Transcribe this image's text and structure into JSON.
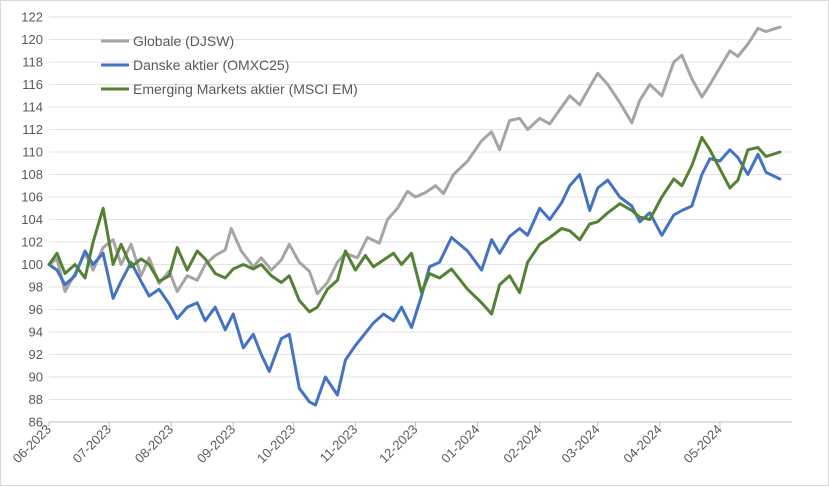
{
  "chart_data": {
    "type": "line",
    "title": "",
    "xlabel": "",
    "ylabel": "",
    "ylim": [
      86,
      122
    ],
    "y_ticks": [
      86,
      88,
      90,
      92,
      94,
      96,
      98,
      100,
      102,
      104,
      106,
      108,
      110,
      112,
      114,
      116,
      118,
      120,
      122
    ],
    "x_range": [
      "2023-06-01",
      "2024-06-06"
    ],
    "x_ticks": [
      {
        "date": "2023-06-01",
        "label": "06-2023"
      },
      {
        "date": "2023-07-01",
        "label": "07-2023"
      },
      {
        "date": "2023-08-01",
        "label": "08-2023"
      },
      {
        "date": "2023-09-01",
        "label": "09-2023"
      },
      {
        "date": "2023-10-01",
        "label": "10-2023"
      },
      {
        "date": "2023-11-01",
        "label": "11-2023"
      },
      {
        "date": "2023-12-01",
        "label": "12-2023"
      },
      {
        "date": "2024-01-01",
        "label": "01-2024"
      },
      {
        "date": "2024-02-01",
        "label": "02-2024"
      },
      {
        "date": "2024-03-01",
        "label": "03-2024"
      },
      {
        "date": "2024-04-01",
        "label": "04-2024"
      },
      {
        "date": "2024-05-01",
        "label": "05-2024"
      }
    ],
    "grid": "horizontal",
    "legend_position": "top-left",
    "series": [
      {
        "name": "Globale (DJSW)",
        "color": "#a5a5a5",
        "points": [
          [
            "2023-06-01",
            100.0
          ],
          [
            "2023-06-05",
            100.5
          ],
          [
            "2023-06-09",
            97.6
          ],
          [
            "2023-06-14",
            99.2
          ],
          [
            "2023-06-19",
            101.0
          ],
          [
            "2023-06-23",
            99.5
          ],
          [
            "2023-06-28",
            101.5
          ],
          [
            "2023-07-03",
            102.2
          ],
          [
            "2023-07-07",
            100.0
          ],
          [
            "2023-07-12",
            101.8
          ],
          [
            "2023-07-17",
            99.0
          ],
          [
            "2023-07-21",
            100.6
          ],
          [
            "2023-07-26",
            98.3
          ],
          [
            "2023-07-31",
            99.4
          ],
          [
            "2023-08-04",
            97.6
          ],
          [
            "2023-08-09",
            99.0
          ],
          [
            "2023-08-14",
            98.6
          ],
          [
            "2023-08-18",
            100.0
          ],
          [
            "2023-08-23",
            100.8
          ],
          [
            "2023-08-28",
            101.3
          ],
          [
            "2023-08-31",
            103.2
          ],
          [
            "2023-09-05",
            101.2
          ],
          [
            "2023-09-11",
            99.8
          ],
          [
            "2023-09-15",
            100.6
          ],
          [
            "2023-09-20",
            99.5
          ],
          [
            "2023-09-25",
            100.4
          ],
          [
            "2023-09-29",
            101.8
          ],
          [
            "2023-10-04",
            100.2
          ],
          [
            "2023-10-09",
            99.4
          ],
          [
            "2023-10-13",
            97.4
          ],
          [
            "2023-10-18",
            98.4
          ],
          [
            "2023-10-23",
            100.2
          ],
          [
            "2023-10-27",
            101.0
          ],
          [
            "2023-11-02",
            100.6
          ],
          [
            "2023-11-07",
            102.4
          ],
          [
            "2023-11-13",
            101.9
          ],
          [
            "2023-11-17",
            104.0
          ],
          [
            "2023-11-22",
            105.0
          ],
          [
            "2023-11-27",
            106.5
          ],
          [
            "2023-12-01",
            106.0
          ],
          [
            "2023-12-06",
            106.4
          ],
          [
            "2023-12-11",
            107.0
          ],
          [
            "2023-12-15",
            106.3
          ],
          [
            "2023-12-20",
            108.0
          ],
          [
            "2023-12-27",
            109.2
          ],
          [
            "2024-01-03",
            111.0
          ],
          [
            "2024-01-08",
            111.8
          ],
          [
            "2024-01-12",
            110.2
          ],
          [
            "2024-01-17",
            112.8
          ],
          [
            "2024-01-22",
            113.0
          ],
          [
            "2024-01-26",
            112.0
          ],
          [
            "2024-02-01",
            113.0
          ],
          [
            "2024-02-06",
            112.5
          ],
          [
            "2024-02-12",
            114.0
          ],
          [
            "2024-02-16",
            115.0
          ],
          [
            "2024-02-21",
            114.2
          ],
          [
            "2024-02-26",
            115.8
          ],
          [
            "2024-03-01",
            117.0
          ],
          [
            "2024-03-06",
            116.0
          ],
          [
            "2024-03-12",
            114.4
          ],
          [
            "2024-03-18",
            112.6
          ],
          [
            "2024-03-22",
            114.6
          ],
          [
            "2024-03-27",
            116.0
          ],
          [
            "2024-04-02",
            115.0
          ],
          [
            "2024-04-08",
            118.0
          ],
          [
            "2024-04-12",
            118.6
          ],
          [
            "2024-04-17",
            116.5
          ],
          [
            "2024-04-22",
            114.9
          ],
          [
            "2024-04-26",
            116.0
          ],
          [
            "2024-05-01",
            117.5
          ],
          [
            "2024-05-06",
            119.0
          ],
          [
            "2024-05-10",
            118.5
          ],
          [
            "2024-05-15",
            119.6
          ],
          [
            "2024-05-20",
            121.0
          ],
          [
            "2024-05-24",
            120.7
          ],
          [
            "2024-05-31",
            121.1
          ]
        ]
      },
      {
        "name": "Danske aktier (OMXC25)",
        "color": "#4472c4",
        "points": [
          [
            "2023-06-01",
            100.0
          ],
          [
            "2023-06-05",
            99.5
          ],
          [
            "2023-06-09",
            98.2
          ],
          [
            "2023-06-14",
            99.0
          ],
          [
            "2023-06-19",
            101.2
          ],
          [
            "2023-06-23",
            100.0
          ],
          [
            "2023-06-28",
            101.0
          ],
          [
            "2023-07-03",
            97.0
          ],
          [
            "2023-07-07",
            98.5
          ],
          [
            "2023-07-12",
            100.2
          ],
          [
            "2023-07-17",
            98.5
          ],
          [
            "2023-07-21",
            97.2
          ],
          [
            "2023-07-26",
            97.8
          ],
          [
            "2023-07-31",
            96.5
          ],
          [
            "2023-08-04",
            95.2
          ],
          [
            "2023-08-09",
            96.2
          ],
          [
            "2023-08-14",
            96.6
          ],
          [
            "2023-08-18",
            95.0
          ],
          [
            "2023-08-23",
            96.2
          ],
          [
            "2023-08-28",
            94.2
          ],
          [
            "2023-09-01",
            95.6
          ],
          [
            "2023-09-06",
            92.6
          ],
          [
            "2023-09-11",
            93.8
          ],
          [
            "2023-09-15",
            92.0
          ],
          [
            "2023-09-19",
            90.5
          ],
          [
            "2023-09-25",
            93.4
          ],
          [
            "2023-09-29",
            93.8
          ],
          [
            "2023-10-04",
            89.0
          ],
          [
            "2023-10-09",
            87.8
          ],
          [
            "2023-10-12",
            87.5
          ],
          [
            "2023-10-17",
            90.0
          ],
          [
            "2023-10-23",
            88.4
          ],
          [
            "2023-10-27",
            91.5
          ],
          [
            "2023-11-01",
            92.8
          ],
          [
            "2023-11-06",
            93.9
          ],
          [
            "2023-11-10",
            94.8
          ],
          [
            "2023-11-15",
            95.6
          ],
          [
            "2023-11-20",
            95.0
          ],
          [
            "2023-11-24",
            96.2
          ],
          [
            "2023-11-29",
            94.4
          ],
          [
            "2023-12-04",
            97.2
          ],
          [
            "2023-12-08",
            99.8
          ],
          [
            "2023-12-13",
            100.2
          ],
          [
            "2023-12-19",
            102.4
          ],
          [
            "2023-12-27",
            101.2
          ],
          [
            "2024-01-03",
            99.5
          ],
          [
            "2024-01-08",
            102.2
          ],
          [
            "2024-01-12",
            101.0
          ],
          [
            "2024-01-17",
            102.5
          ],
          [
            "2024-01-22",
            103.2
          ],
          [
            "2024-01-26",
            102.6
          ],
          [
            "2024-02-01",
            105.0
          ],
          [
            "2024-02-06",
            104.0
          ],
          [
            "2024-02-12",
            105.5
          ],
          [
            "2024-02-16",
            107.0
          ],
          [
            "2024-02-21",
            108.0
          ],
          [
            "2024-02-26",
            104.8
          ],
          [
            "2024-03-01",
            106.8
          ],
          [
            "2024-03-06",
            107.5
          ],
          [
            "2024-03-12",
            106.0
          ],
          [
            "2024-03-18",
            105.2
          ],
          [
            "2024-03-22",
            103.8
          ],
          [
            "2024-03-27",
            104.6
          ],
          [
            "2024-04-02",
            102.6
          ],
          [
            "2024-04-08",
            104.4
          ],
          [
            "2024-04-12",
            104.8
          ],
          [
            "2024-04-17",
            105.2
          ],
          [
            "2024-04-22",
            108.0
          ],
          [
            "2024-04-26",
            109.4
          ],
          [
            "2024-05-01",
            109.2
          ],
          [
            "2024-05-06",
            110.2
          ],
          [
            "2024-05-10",
            109.5
          ],
          [
            "2024-05-15",
            108.0
          ],
          [
            "2024-05-20",
            109.8
          ],
          [
            "2024-05-24",
            108.2
          ],
          [
            "2024-05-31",
            107.6
          ]
        ]
      },
      {
        "name": "Emerging Markets aktier (MSCI EM)",
        "color": "#548235",
        "points": [
          [
            "2023-06-01",
            100.0
          ],
          [
            "2023-06-05",
            101.0
          ],
          [
            "2023-06-09",
            99.2
          ],
          [
            "2023-06-14",
            100.0
          ],
          [
            "2023-06-19",
            98.8
          ],
          [
            "2023-06-23",
            102.0
          ],
          [
            "2023-06-28",
            105.0
          ],
          [
            "2023-07-03",
            100.0
          ],
          [
            "2023-07-07",
            101.8
          ],
          [
            "2023-07-12",
            99.8
          ],
          [
            "2023-07-17",
            100.5
          ],
          [
            "2023-07-21",
            100.0
          ],
          [
            "2023-07-26",
            98.5
          ],
          [
            "2023-07-31",
            99.0
          ],
          [
            "2023-08-04",
            101.5
          ],
          [
            "2023-08-09",
            99.5
          ],
          [
            "2023-08-14",
            101.2
          ],
          [
            "2023-08-18",
            100.5
          ],
          [
            "2023-08-23",
            99.2
          ],
          [
            "2023-08-28",
            98.8
          ],
          [
            "2023-09-01",
            99.6
          ],
          [
            "2023-09-06",
            100.0
          ],
          [
            "2023-09-11",
            99.6
          ],
          [
            "2023-09-15",
            100.0
          ],
          [
            "2023-09-20",
            99.0
          ],
          [
            "2023-09-25",
            98.4
          ],
          [
            "2023-09-29",
            99.0
          ],
          [
            "2023-10-04",
            96.8
          ],
          [
            "2023-10-09",
            95.8
          ],
          [
            "2023-10-13",
            96.2
          ],
          [
            "2023-10-18",
            97.8
          ],
          [
            "2023-10-23",
            98.6
          ],
          [
            "2023-10-27",
            101.2
          ],
          [
            "2023-11-01",
            99.5
          ],
          [
            "2023-11-06",
            100.8
          ],
          [
            "2023-11-10",
            99.8
          ],
          [
            "2023-11-15",
            100.4
          ],
          [
            "2023-11-20",
            101.0
          ],
          [
            "2023-11-24",
            100.0
          ],
          [
            "2023-11-29",
            101.0
          ],
          [
            "2023-12-04",
            97.5
          ],
          [
            "2023-12-08",
            99.2
          ],
          [
            "2023-12-13",
            98.8
          ],
          [
            "2023-12-19",
            99.6
          ],
          [
            "2023-12-27",
            97.8
          ],
          [
            "2024-01-03",
            96.6
          ],
          [
            "2024-01-08",
            95.6
          ],
          [
            "2024-01-12",
            98.2
          ],
          [
            "2024-01-17",
            99.0
          ],
          [
            "2024-01-22",
            97.5
          ],
          [
            "2024-01-26",
            100.2
          ],
          [
            "2024-02-01",
            101.8
          ],
          [
            "2024-02-06",
            102.4
          ],
          [
            "2024-02-12",
            103.2
          ],
          [
            "2024-02-16",
            103.0
          ],
          [
            "2024-02-21",
            102.2
          ],
          [
            "2024-02-26",
            103.6
          ],
          [
            "2024-03-01",
            103.8
          ],
          [
            "2024-03-06",
            104.6
          ],
          [
            "2024-03-12",
            105.4
          ],
          [
            "2024-03-18",
            104.8
          ],
          [
            "2024-03-22",
            104.2
          ],
          [
            "2024-03-27",
            104.0
          ],
          [
            "2024-04-02",
            106.0
          ],
          [
            "2024-04-08",
            107.6
          ],
          [
            "2024-04-12",
            107.0
          ],
          [
            "2024-04-17",
            108.8
          ],
          [
            "2024-04-22",
            111.3
          ],
          [
            "2024-04-26",
            110.2
          ],
          [
            "2024-05-01",
            108.5
          ],
          [
            "2024-05-06",
            106.8
          ],
          [
            "2024-05-10",
            107.5
          ],
          [
            "2024-05-15",
            110.2
          ],
          [
            "2024-05-20",
            110.4
          ],
          [
            "2024-05-24",
            109.6
          ],
          [
            "2024-05-31",
            110.0
          ]
        ]
      }
    ]
  }
}
